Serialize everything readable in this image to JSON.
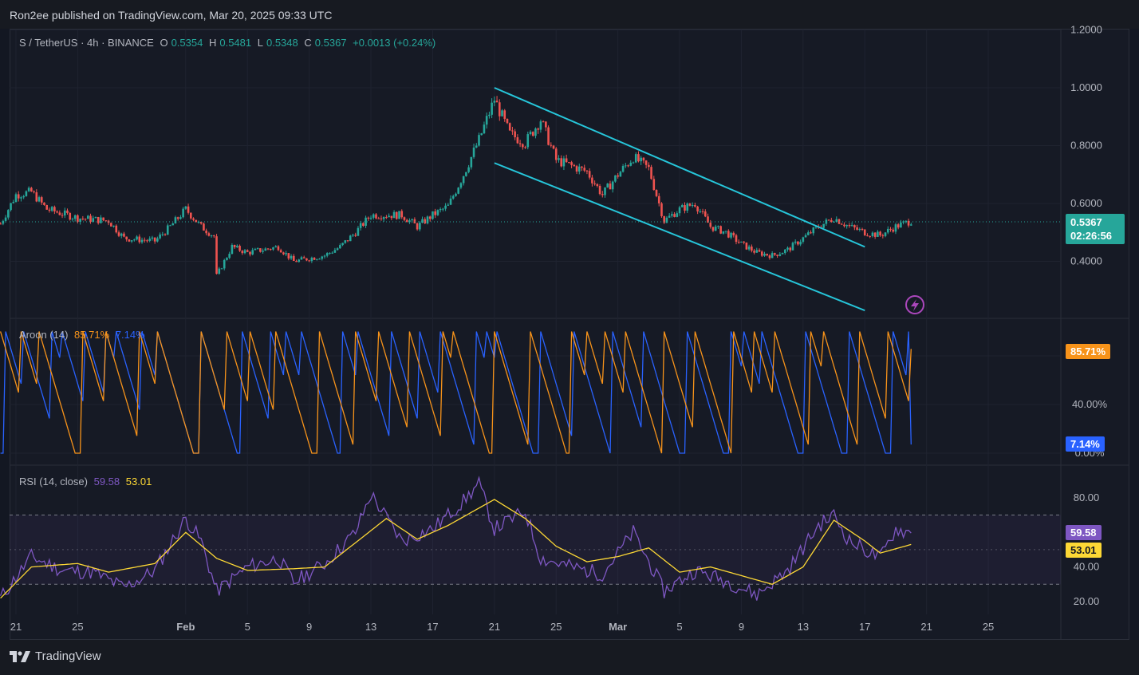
{
  "header": {
    "published": "Ron2ee published on TradingView.com, Mar 20, 2025 09:33 UTC"
  },
  "legend": {
    "symbol": "S / TetherUS · 4h · BINANCE",
    "o_label": "O",
    "o_value": "0.5354",
    "h_label": "H",
    "h_value": "0.5481",
    "l_label": "L",
    "l_value": "0.5348",
    "c_label": "C",
    "c_value": "0.5367",
    "change": "+0.0013 (+0.24%)"
  },
  "price_tag": {
    "price": "0.5367",
    "countdown": "02:26:56"
  },
  "aroon_legend": {
    "name": "Aroon (14)",
    "up": "85.71%",
    "down": "7.14%"
  },
  "aroon_tags": {
    "up": "85.71%",
    "down": "7.14%"
  },
  "rsi_legend": {
    "name": "RSI (14, close)",
    "rsi": "59.58",
    "ma": "53.01"
  },
  "rsi_tags": {
    "rsi": "59.58",
    "ma": "53.01"
  },
  "footer": {
    "brand": "TradingView"
  },
  "colors": {
    "up": "#26a69a",
    "down": "#ef5350",
    "channel": "#26c6da",
    "aroon_up": "#f7931a",
    "aroon_down": "#2962ff",
    "rsi": "#7e57c2",
    "rsi_ma": "#fdd835",
    "price_tag": "#26a69a"
  },
  "icons": [
    "tradingview-logo-icon",
    "lightning-alert-icon"
  ],
  "chart_data": [
    {
      "type": "candlestick",
      "title": "S / TetherUS · 4h · BINANCE",
      "ylim": [
        0.2,
        1.2
      ],
      "yticks": [
        "1.2000",
        "1.0000",
        "0.8000",
        "0.6000",
        "0.4000"
      ],
      "xticks": [
        "21",
        "25",
        "Feb",
        "5",
        "9",
        "13",
        "17",
        "21",
        "25",
        "Mar",
        "5",
        "9",
        "13",
        "17",
        "21",
        "25"
      ],
      "close_path": [
        [
          "Jan 20",
          0.53
        ],
        [
          "Jan 21",
          0.63
        ],
        [
          "Jan 22",
          0.64
        ],
        [
          "Jan 23",
          0.58
        ],
        [
          "Jan 25",
          0.55
        ],
        [
          "Jan 27",
          0.54
        ],
        [
          "Jan 28",
          0.48
        ],
        [
          "Jan 30",
          0.47
        ],
        [
          "Jan 31",
          0.52
        ],
        [
          "Feb 1",
          0.58
        ],
        [
          "Feb 2",
          0.52
        ],
        [
          "Feb 3",
          0.48
        ],
        [
          "Feb 3 low",
          0.35
        ],
        [
          "Feb 4",
          0.45
        ],
        [
          "Feb 5",
          0.43
        ],
        [
          "Feb 7",
          0.45
        ],
        [
          "Feb 8",
          0.4
        ],
        [
          "Feb 9",
          0.41
        ],
        [
          "Feb 10",
          0.42
        ],
        [
          "Feb 11",
          0.45
        ],
        [
          "Feb 12",
          0.5
        ],
        [
          "Feb 13",
          0.56
        ],
        [
          "Feb 15",
          0.56
        ],
        [
          "Feb 16",
          0.52
        ],
        [
          "Feb 17",
          0.56
        ],
        [
          "Feb 18",
          0.59
        ],
        [
          "Feb 19",
          0.7
        ],
        [
          "Feb 20",
          0.82
        ],
        [
          "Feb 21",
          0.96
        ],
        [
          "Feb 22",
          0.84
        ],
        [
          "Feb 23",
          0.81
        ],
        [
          "Feb 24",
          0.89
        ],
        [
          "Feb 25",
          0.75
        ],
        [
          "Feb 26",
          0.73
        ],
        [
          "Feb 27",
          0.71
        ],
        [
          "Feb 28",
          0.63
        ],
        [
          "Mar 1",
          0.7
        ],
        [
          "Mar 2",
          0.76
        ],
        [
          "Mar 3",
          0.72
        ],
        [
          "Mar 4",
          0.54
        ],
        [
          "Mar 5",
          0.58
        ],
        [
          "Mar 6",
          0.6
        ],
        [
          "Mar 7",
          0.52
        ],
        [
          "Mar 8",
          0.5
        ],
        [
          "Mar 9",
          0.46
        ],
        [
          "Mar 10",
          0.43
        ],
        [
          "Mar 11",
          0.42
        ],
        [
          "Mar 12",
          0.44
        ],
        [
          "Mar 13",
          0.48
        ],
        [
          "Mar 14",
          0.52
        ],
        [
          "Mar 15",
          0.55
        ],
        [
          "Mar 16",
          0.52
        ],
        [
          "Mar 17",
          0.5
        ],
        [
          "Mar 18",
          0.49
        ],
        [
          "Mar 19",
          0.52
        ],
        [
          "Mar 20",
          0.54
        ]
      ],
      "channel_upper": [
        [
          "Feb 21",
          1.0
        ],
        [
          "Mar 17",
          0.45
        ]
      ],
      "channel_lower": [
        [
          "Feb 21",
          0.74
        ],
        [
          "Mar 17",
          0.23
        ]
      ],
      "last_price": 0.5367
    },
    {
      "type": "line",
      "title": "Aroon (14)",
      "ylim": [
        0,
        100
      ],
      "yticks": [
        "80.00%",
        "40.00%",
        "0.00%"
      ],
      "series": [
        {
          "name": "Aroon Up",
          "last": 85.71
        },
        {
          "name": "Aroon Down",
          "last": 7.14
        }
      ]
    },
    {
      "type": "line",
      "title": "RSI (14, close)",
      "ylim": [
        15,
        90
      ],
      "yticks": [
        "80.00",
        "60.00",
        "40.00",
        "20.00"
      ],
      "bands": [
        30,
        70
      ],
      "series": [
        {
          "name": "RSI",
          "values": [
            [
              "Jan 20",
              22
            ],
            [
              "Jan 22",
              46
            ],
            [
              "Jan 24",
              38
            ],
            [
              "Jan 26",
              37
            ],
            [
              "Jan 28",
              28
            ],
            [
              "Jan 30",
              38
            ],
            [
              "Feb 1",
              68
            ],
            [
              "Feb 2",
              55
            ],
            [
              "Feb 3",
              26
            ],
            [
              "Feb 5",
              40
            ],
            [
              "Feb 7",
              45
            ],
            [
              "Feb 8",
              31
            ],
            [
              "Feb 10",
              42
            ],
            [
              "Feb 12",
              60
            ],
            [
              "Feb 13",
              82
            ],
            [
              "Feb 15",
              55
            ],
            [
              "Feb 17",
              62
            ],
            [
              "Feb 19",
              78
            ],
            [
              "Feb 20",
              88
            ],
            [
              "Feb 21",
              62
            ],
            [
              "Feb 23",
              72
            ],
            [
              "Feb 24",
              45
            ],
            [
              "Feb 26",
              40
            ],
            [
              "Feb 28",
              36
            ],
            [
              "Mar 2",
              60
            ],
            [
              "Mar 4",
              26
            ],
            [
              "Mar 6",
              38
            ],
            [
              "Mar 8",
              32
            ],
            [
              "Mar 10",
              24
            ],
            [
              "Mar 12",
              38
            ],
            [
              "Mar 14",
              64
            ],
            [
              "Mar 15",
              70
            ],
            [
              "Mar 16",
              55
            ],
            [
              "Mar 18",
              45
            ],
            [
              "Mar 19",
              62
            ],
            [
              "Mar 20",
              59.58
            ]
          ]
        },
        {
          "name": "RSI-based MA",
          "values": [
            [
              "Jan 20",
              22
            ],
            [
              "Jan 22",
              40
            ],
            [
              "Jan 25",
              42
            ],
            [
              "Jan 27",
              37
            ],
            [
              "Jan 30",
              42
            ],
            [
              "Feb 1",
              60
            ],
            [
              "Feb 3",
              45
            ],
            [
              "Feb 5",
              38
            ],
            [
              "Feb 8",
              39
            ],
            [
              "Feb 10",
              40
            ],
            [
              "Feb 12",
              54
            ],
            [
              "Feb 14",
              68
            ],
            [
              "Feb 16",
              56
            ],
            [
              "Feb 18",
              64
            ],
            [
              "Feb 21",
              79
            ],
            [
              "Feb 23",
              68
            ],
            [
              "Feb 25",
              52
            ],
            [
              "Feb 27",
              43
            ],
            [
              "Mar 1",
              46
            ],
            [
              "Mar 3",
              51
            ],
            [
              "Mar 5",
              37
            ],
            [
              "Mar 7",
              40
            ],
            [
              "Mar 9",
              35
            ],
            [
              "Mar 11",
              30
            ],
            [
              "Mar 13",
              40
            ],
            [
              "Mar 15",
              67
            ],
            [
              "Mar 17",
              55
            ],
            [
              "Mar 18",
              48
            ],
            [
              "Mar 20",
              53.01
            ]
          ]
        }
      ]
    }
  ]
}
